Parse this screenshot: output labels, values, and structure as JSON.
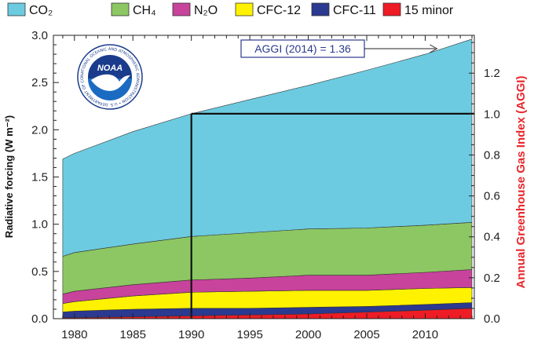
{
  "chart_data": {
    "type": "area",
    "stacked": true,
    "x": [
      1979,
      1980,
      1985,
      1990,
      1995,
      2000,
      2005,
      2010,
      2014
    ],
    "series": [
      {
        "name": "15 minor",
        "color": "#ee1c25",
        "values": [
          0.01,
          0.01,
          0.02,
          0.03,
          0.04,
          0.05,
          0.07,
          0.09,
          0.11
        ]
      },
      {
        "name": "CFC-11",
        "color": "#2b3990",
        "values": [
          0.06,
          0.07,
          0.08,
          0.08,
          0.07,
          0.07,
          0.06,
          0.06,
          0.06
        ]
      },
      {
        "name": "CFC-12",
        "color": "#fff200",
        "values": [
          0.09,
          0.1,
          0.14,
          0.17,
          0.18,
          0.18,
          0.17,
          0.17,
          0.16
        ]
      },
      {
        "name": "N2O",
        "color": "#c8439b",
        "values": [
          0.1,
          0.11,
          0.12,
          0.13,
          0.14,
          0.16,
          0.16,
          0.17,
          0.19
        ]
      },
      {
        "name": "CH4",
        "color": "#8dc763",
        "values": [
          0.4,
          0.41,
          0.43,
          0.46,
          0.48,
          0.49,
          0.5,
          0.5,
          0.5
        ]
      },
      {
        "name": "CO2",
        "color": "#6ccbe0",
        "values": [
          1.03,
          1.05,
          1.19,
          1.3,
          1.41,
          1.52,
          1.67,
          1.81,
          1.94
        ]
      }
    ],
    "xlim": [
      1978.2,
      2014.2
    ],
    "ylim": [
      0,
      3.0
    ],
    "ylim_right": [
      0,
      1.385
    ],
    "xticks": [
      1980,
      1985,
      1990,
      1995,
      2000,
      2005,
      2010
    ],
    "yticks_left": [
      "0.0",
      "0.5",
      "1.0",
      "1.5",
      "2.0",
      "2.5",
      "3.0"
    ],
    "yticks_right": [
      "0.0",
      "0.2",
      "0.4",
      "0.6",
      "0.8",
      "1.0",
      "1.2"
    ],
    "ylabel": "Radiative forcing (W m⁻²)",
    "ylabel_right": "Annual Greenhouse Gas Index (AGGI)",
    "legend": {
      "placement": "top",
      "entries": [
        {
          "label": "CO₂",
          "color": "#6ccbe0"
        },
        {
          "label": "CH₄",
          "color": "#8dc763"
        },
        {
          "label": "N₂O",
          "color": "#c8439b"
        },
        {
          "label": "CFC-12",
          "color": "#fff200"
        },
        {
          "label": "CFC-11",
          "color": "#2b3990"
        },
        {
          "label": "15 minor",
          "color": "#ee1c25"
        }
      ]
    },
    "reference": {
      "x": 1990,
      "y": 2.17,
      "aggi": 1.0
    },
    "annotation": {
      "text": "AGGI (2014) = 1.36",
      "arrow_to_x": 2011
    }
  },
  "logo": {
    "label": "NOAA",
    "ring_text": "NATIONAL OCEANIC AND ATMOSPHERIC ADMINISTRATION • U.S. DEPARTMENT OF COMMERCE •",
    "colors": {
      "outer": "#ffffff",
      "ring": "#1b3c8c",
      "sky": "#1b6bc2",
      "bird": "#ffffff"
    }
  }
}
